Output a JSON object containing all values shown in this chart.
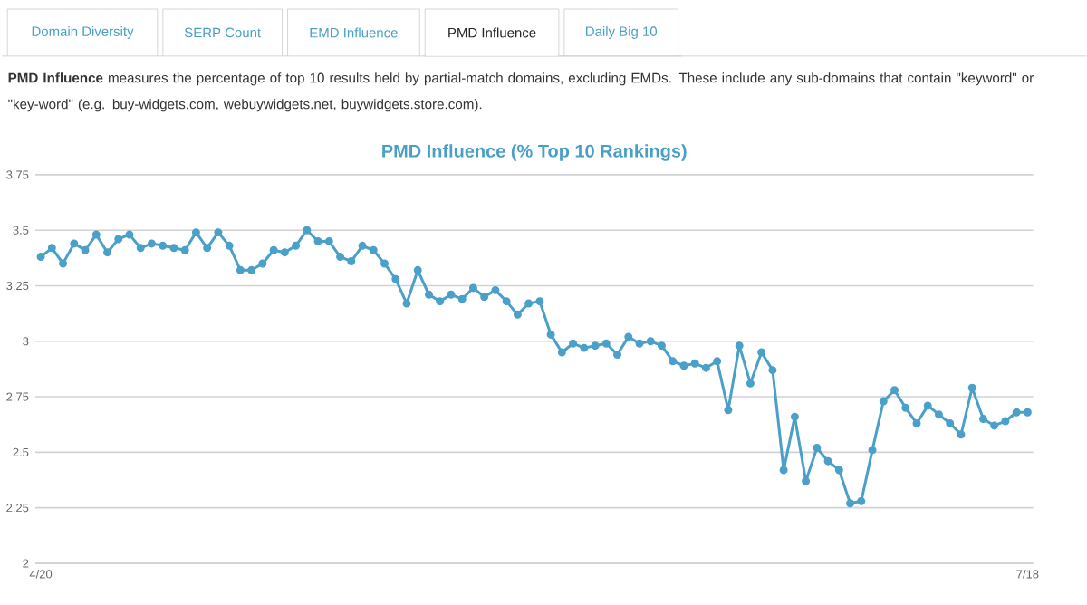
{
  "chart_data": {
    "type": "line",
    "title": "PMD Influence (% Top 10 Rankings)",
    "categories": [
      "4/20",
      null,
      null,
      null,
      null,
      null,
      null,
      null,
      null,
      null,
      null,
      null,
      null,
      null,
      null,
      null,
      null,
      null,
      null,
      null,
      null,
      null,
      null,
      null,
      null,
      null,
      null,
      null,
      null,
      null,
      null,
      null,
      null,
      null,
      null,
      null,
      null,
      null,
      null,
      null,
      null,
      null,
      null,
      null,
      null,
      null,
      null,
      null,
      null,
      null,
      null,
      null,
      null,
      null,
      null,
      null,
      null,
      null,
      null,
      null,
      null,
      null,
      null,
      null,
      null,
      null,
      null,
      null,
      null,
      null,
      null,
      null,
      null,
      null,
      null,
      null,
      null,
      null,
      null,
      null,
      null,
      null,
      null,
      null,
      null,
      null,
      null,
      null,
      null,
      "7/18"
    ],
    "series": [
      {
        "color": "#4aa0c8",
        "values": [
          3.38,
          3.42,
          3.35,
          3.44,
          3.41,
          3.48,
          3.4,
          3.46,
          3.48,
          3.42,
          3.44,
          3.43,
          3.42,
          3.41,
          3.49,
          3.42,
          3.49,
          3.43,
          3.32,
          3.32,
          3.35,
          3.41,
          3.4,
          3.43,
          3.5,
          3.45,
          3.45,
          3.38,
          3.36,
          3.43,
          3.41,
          3.35,
          3.28,
          3.17,
          3.32,
          3.21,
          3.18,
          3.21,
          3.19,
          3.24,
          3.2,
          3.23,
          3.18,
          3.12,
          3.17,
          3.18,
          3.03,
          2.95,
          2.99,
          2.97,
          2.98,
          2.99,
          2.94,
          3.02,
          2.99,
          3.0,
          2.98,
          2.91,
          2.89,
          2.9,
          2.88,
          2.91,
          2.69,
          2.98,
          2.81,
          2.95,
          2.87,
          2.42,
          2.66,
          2.37,
          2.52,
          2.46,
          2.42,
          2.27,
          2.28,
          2.51,
          2.73,
          2.78,
          2.7,
          2.63,
          2.71,
          2.67,
          2.63,
          2.58,
          2.79,
          2.65,
          2.62,
          2.64,
          2.68,
          2.68
        ]
      }
    ],
    "ylim": [
      2,
      3.75
    ],
    "yticks": [
      2,
      2.25,
      2.5,
      2.75,
      3,
      3.25,
      3.5,
      3.75
    ],
    "grid": "y",
    "marker": "circle",
    "line_style": "solid",
    "annotations": [
      "Domain Diversity",
      "SERP Count",
      "EMD Influence",
      "PMD Influence",
      "Daily Big 10",
      "**PMD Influence** measures the percentage of top 10 results held by partial-match domains, excluding EMDs. These include any sub-domains that contain \"keyword\" or \"key-word\" (e.g. buy-widgets.com, webuywidgets.net, buywidgets.store.com)."
    ]
  }
}
